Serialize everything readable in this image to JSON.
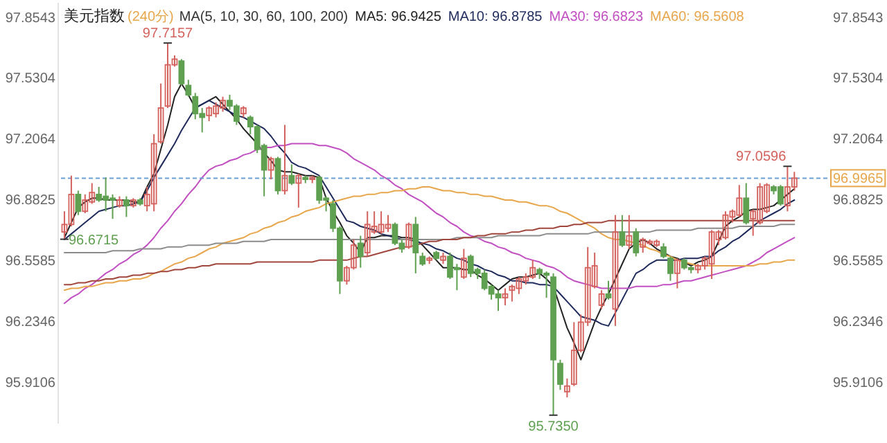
{
  "chart_data": {
    "type": "candlestick",
    "title": "美元指数",
    "subtitle": "(240分)",
    "legend_title": "MA(5, 10, 30, 60, 100, 200)",
    "legend": "top",
    "categories": [
      null,
      null,
      null,
      null,
      null,
      null,
      null,
      null,
      null,
      null,
      null,
      null,
      null,
      null,
      null,
      null,
      null,
      null,
      null,
      null,
      null,
      null,
      null,
      null,
      null,
      null,
      null,
      null,
      null,
      null,
      null,
      null,
      null,
      null,
      null,
      null,
      null,
      null,
      null,
      null,
      null,
      null,
      null,
      null,
      null,
      null,
      null,
      null,
      null,
      null,
      null,
      null,
      null,
      null,
      null,
      null,
      null,
      null,
      null,
      null,
      null,
      null,
      null,
      null,
      null,
      null,
      null,
      null,
      null,
      null,
      null,
      null,
      null,
      null,
      null,
      null,
      null,
      null,
      null,
      null,
      null,
      null,
      null,
      null,
      null,
      null,
      null,
      null,
      null,
      null,
      null,
      null,
      null,
      null,
      null,
      null,
      null,
      null,
      null,
      null,
      null,
      null,
      null,
      null,
      null,
      null,
      null
    ],
    "ohlc": [
      [
        96.71,
        96.82,
        96.6715,
        96.75
      ],
      [
        96.75,
        97.01,
        96.74,
        96.91
      ],
      [
        96.91,
        96.93,
        96.8,
        96.82
      ],
      [
        96.82,
        96.91,
        96.81,
        96.88
      ],
      [
        96.87,
        96.97,
        96.86,
        96.92
      ],
      [
        96.91,
        96.95,
        96.87,
        96.88
      ],
      [
        96.9,
        97.0,
        96.82,
        96.88
      ],
      [
        96.89,
        96.91,
        96.78,
        96.88
      ],
      [
        96.85,
        96.9,
        96.84,
        96.88
      ],
      [
        96.88,
        96.9,
        96.79,
        96.85
      ],
      [
        96.85,
        96.89,
        96.84,
        96.88
      ],
      [
        96.88,
        96.89,
        96.85,
        96.86
      ],
      [
        96.85,
        96.95,
        96.82,
        96.91
      ],
      [
        96.86,
        97.23,
        96.82,
        97.18
      ],
      [
        97.19,
        97.5,
        97.18,
        97.37
      ],
      [
        97.38,
        97.7157,
        97.37,
        97.6
      ],
      [
        97.6,
        97.65,
        97.59,
        97.63
      ],
      [
        97.62,
        97.63,
        97.49,
        97.5
      ],
      [
        97.49,
        97.52,
        97.43,
        97.44
      ],
      [
        97.43,
        97.45,
        97.31,
        97.34
      ],
      [
        97.34,
        97.37,
        97.24,
        97.32
      ],
      [
        97.33,
        97.38,
        97.3,
        97.37
      ],
      [
        97.34,
        97.4,
        97.32,
        97.38
      ],
      [
        97.37,
        97.43,
        97.35,
        97.41
      ],
      [
        97.41,
        97.44,
        97.36,
        97.38
      ],
      [
        97.38,
        97.39,
        97.28,
        97.3
      ],
      [
        97.34,
        97.38,
        97.32,
        97.37
      ],
      [
        97.32,
        97.33,
        97.23,
        97.27
      ],
      [
        97.27,
        97.28,
        97.13,
        97.15
      ],
      [
        97.17,
        97.18,
        96.9,
        97.04
      ],
      [
        97.04,
        97.11,
        96.99,
        97.1
      ],
      [
        97.1,
        97.11,
        96.91,
        96.93
      ],
      [
        96.93,
        97.28,
        96.91,
        97.01
      ],
      [
        97.01,
        97.07,
        96.96,
        96.97
      ],
      [
        96.97,
        97.02,
        96.84,
        97.01
      ],
      [
        97.0,
        97.01,
        96.97,
        96.99
      ],
      [
        96.99,
        97.01,
        96.97,
        97.0
      ],
      [
        97.0,
        97.01,
        96.86,
        96.88
      ],
      [
        96.89,
        96.9,
        96.82,
        96.88
      ],
      [
        96.86,
        96.88,
        96.71,
        96.73
      ],
      [
        96.73,
        96.74,
        96.38,
        96.45
      ],
      [
        96.45,
        96.53,
        96.43,
        96.52
      ],
      [
        96.52,
        96.67,
        96.51,
        96.64
      ],
      [
        96.65,
        96.69,
        96.52,
        96.58
      ],
      [
        96.6,
        96.82,
        96.58,
        96.75
      ],
      [
        96.71,
        96.82,
        96.7,
        96.74
      ],
      [
        96.71,
        96.82,
        96.7,
        96.75
      ],
      [
        96.73,
        96.8,
        96.71,
        96.75
      ],
      [
        96.75,
        96.76,
        96.64,
        96.65
      ],
      [
        96.65,
        96.67,
        96.6,
        96.62
      ],
      [
        96.63,
        96.76,
        96.62,
        96.75
      ],
      [
        96.75,
        96.79,
        96.49,
        96.6
      ],
      [
        96.58,
        96.6,
        96.53,
        96.54
      ],
      [
        96.56,
        96.58,
        96.54,
        96.57
      ],
      [
        96.6,
        96.61,
        96.56,
        96.57
      ],
      [
        96.56,
        96.6,
        96.54,
        96.58
      ],
      [
        96.58,
        96.6,
        96.46,
        96.47
      ],
      [
        96.52,
        96.54,
        96.4,
        96.51
      ],
      [
        96.47,
        96.62,
        96.46,
        96.57
      ],
      [
        96.58,
        96.59,
        96.47,
        96.49
      ],
      [
        96.51,
        96.52,
        96.46,
        96.49
      ],
      [
        96.49,
        96.51,
        96.4,
        96.41
      ],
      [
        96.42,
        96.43,
        96.35,
        96.38
      ],
      [
        96.38,
        96.4,
        96.29,
        96.36
      ],
      [
        96.36,
        96.41,
        96.32,
        96.38
      ],
      [
        96.4,
        96.43,
        96.34,
        96.42
      ],
      [
        96.41,
        96.47,
        96.38,
        96.46
      ],
      [
        96.45,
        96.49,
        96.43,
        96.47
      ],
      [
        96.47,
        96.56,
        96.46,
        96.52
      ],
      [
        96.51,
        96.52,
        96.46,
        96.49
      ],
      [
        96.49,
        96.5,
        96.36,
        96.48
      ],
      [
        96.47,
        96.49,
        95.735,
        96.03
      ],
      [
        96.01,
        96.03,
        95.87,
        95.9
      ],
      [
        95.86,
        95.93,
        95.83,
        95.89
      ],
      [
        95.9,
        96.23,
        95.89,
        96.08
      ],
      [
        96.08,
        96.27,
        96.07,
        96.23
      ],
      [
        96.23,
        96.63,
        96.21,
        96.52
      ],
      [
        96.42,
        96.6,
        96.41,
        96.53
      ],
      [
        96.32,
        96.4,
        96.3,
        96.38
      ],
      [
        96.38,
        96.45,
        96.35,
        96.36
      ],
      [
        96.3,
        96.8,
        96.21,
        96.71
      ],
      [
        96.71,
        96.8,
        96.63,
        96.64
      ],
      [
        96.64,
        96.8,
        96.62,
        96.69
      ],
      [
        96.71,
        96.73,
        96.58,
        96.6
      ],
      [
        96.63,
        96.68,
        96.6,
        96.67
      ],
      [
        96.65,
        96.67,
        96.64,
        96.66
      ],
      [
        96.64,
        96.67,
        96.63,
        96.66
      ],
      [
        96.63,
        96.65,
        96.57,
        96.58
      ],
      [
        96.57,
        96.58,
        96.45,
        96.49
      ],
      [
        96.49,
        96.57,
        96.41,
        96.56
      ],
      [
        96.56,
        96.57,
        96.51,
        96.52
      ],
      [
        96.52,
        96.53,
        96.49,
        96.51
      ],
      [
        96.51,
        96.54,
        96.49,
        96.53
      ],
      [
        96.53,
        96.58,
        96.51,
        96.57
      ],
      [
        96.54,
        96.72,
        96.46,
        96.71
      ],
      [
        96.67,
        96.72,
        96.64,
        96.71
      ],
      [
        96.68,
        96.82,
        96.67,
        96.8
      ],
      [
        96.79,
        96.83,
        96.76,
        96.82
      ],
      [
        96.8,
        96.96,
        96.79,
        96.89
      ],
      [
        96.89,
        96.97,
        96.75,
        96.76
      ],
      [
        96.78,
        96.83,
        96.69,
        96.82
      ],
      [
        96.76,
        96.97,
        96.75,
        96.95
      ],
      [
        96.82,
        96.97,
        96.81,
        96.96
      ],
      [
        96.95,
        96.96,
        96.91,
        96.93
      ],
      [
        96.95,
        96.96,
        96.85,
        96.86
      ],
      [
        96.85,
        97.0596,
        96.82,
        96.95
      ],
      [
        96.95,
        97.03,
        96.93,
        96.9965
      ]
    ],
    "series": [
      {
        "type": "line",
        "name": "MA5: 96.9425",
        "color": "#222222",
        "values": [
          96.68,
          96.76,
          96.84,
          96.87,
          96.89,
          96.89,
          96.88,
          96.88,
          96.88,
          96.88,
          96.87,
          96.87,
          96.95,
          97.02,
          97.15,
          97.28,
          97.43,
          97.5,
          97.44,
          97.37,
          97.39,
          97.41,
          97.43,
          97.39,
          97.35,
          97.31,
          97.26,
          97.22,
          97.18,
          97.13,
          97.09,
          97.04,
          97.03,
          97.03,
          97.02,
          97.01,
          97.01,
          97.0,
          96.89,
          96.82,
          96.76,
          96.69,
          96.65,
          96.6,
          96.68,
          96.68,
          96.69,
          96.69,
          96.69,
          96.68,
          96.68,
          96.67,
          96.64,
          96.6,
          96.56,
          96.52,
          96.52,
          96.52,
          96.51,
          96.51,
          96.48,
          96.46,
          96.43,
          96.4,
          96.43,
          96.46,
          96.47,
          96.47,
          96.48,
          96.49,
          96.46,
          96.42,
          96.31,
          96.2,
          96.12,
          96.03,
          96.13,
          96.23,
          96.31,
          96.38,
          96.46,
          96.54,
          96.62,
          96.65,
          96.67,
          96.65,
          96.62,
          96.6,
          96.58,
          96.57,
          96.55,
          96.53,
          96.55,
          96.56,
          96.58,
          96.66,
          96.74,
          96.77,
          96.79,
          96.82,
          96.83,
          96.83,
          96.84,
          96.85,
          96.88,
          96.91,
          96.94
        ]
      },
      {
        "type": "line",
        "name": "MA10: 96.8785",
        "color": "#1f2a5c",
        "values": [
          96.67,
          96.7,
          96.73,
          96.76,
          96.79,
          96.82,
          96.83,
          96.84,
          96.85,
          96.85,
          96.86,
          96.87,
          96.93,
          97.0,
          97.06,
          97.12,
          97.18,
          97.25,
          97.31,
          97.37,
          97.39,
          97.41,
          97.39,
          97.37,
          97.35,
          97.33,
          97.32,
          97.3,
          97.28,
          97.26,
          97.22,
          97.17,
          97.13,
          97.08,
          97.06,
          97.05,
          97.03,
          97.01,
          96.95,
          96.89,
          96.83,
          96.77,
          96.76,
          96.74,
          96.73,
          96.72,
          96.7,
          96.69,
          96.68,
          96.67,
          96.67,
          96.66,
          96.65,
          96.64,
          96.62,
          96.61,
          96.59,
          96.57,
          96.56,
          96.54,
          96.53,
          96.51,
          96.5,
          96.48,
          96.47,
          96.45,
          96.45,
          96.44,
          96.44,
          96.43,
          96.43,
          96.42,
          96.38,
          96.34,
          96.3,
          96.26,
          96.25,
          96.24,
          96.22,
          96.21,
          96.28,
          96.35,
          96.42,
          96.49,
          96.51,
          96.54,
          96.56,
          96.56,
          96.56,
          96.56,
          96.57,
          96.57,
          96.57,
          96.58,
          96.58,
          96.61,
          96.63,
          96.66,
          96.68,
          96.71,
          96.74,
          96.77,
          96.79,
          96.81,
          96.83,
          96.86,
          96.88
        ]
      },
      {
        "type": "line",
        "name": "MA30: 96.6823",
        "color": "#c24fc2",
        "values": [
          96.33,
          96.36,
          96.38,
          96.41,
          96.43,
          96.46,
          96.49,
          96.51,
          96.54,
          96.56,
          96.59,
          96.61,
          96.64,
          96.68,
          96.73,
          96.77,
          96.82,
          96.86,
          96.91,
          96.95,
          97.0,
          97.04,
          97.06,
          97.07,
          97.09,
          97.1,
          97.12,
          97.13,
          97.15,
          97.16,
          97.16,
          97.17,
          97.17,
          97.18,
          97.18,
          97.18,
          97.18,
          97.17,
          97.17,
          97.16,
          97.15,
          97.13,
          97.1,
          97.08,
          97.06,
          97.04,
          97.01,
          96.99,
          96.96,
          96.94,
          96.91,
          96.89,
          96.87,
          96.84,
          96.81,
          96.79,
          96.76,
          96.74,
          96.71,
          96.69,
          96.68,
          96.66,
          96.65,
          96.63,
          96.62,
          96.6,
          96.59,
          96.57,
          96.56,
          96.55,
          96.53,
          96.52,
          96.5,
          96.47,
          96.45,
          96.44,
          96.43,
          96.42,
          96.41,
          96.41,
          96.41,
          96.41,
          96.41,
          96.42,
          96.42,
          96.42,
          96.42,
          96.43,
          96.43,
          96.44,
          96.45,
          96.45,
          96.46,
          96.47,
          96.48,
          96.49,
          96.5,
          96.51,
          96.52,
          96.53,
          96.55,
          96.57,
          96.6,
          96.62,
          96.64,
          96.66,
          96.68
        ]
      },
      {
        "type": "line",
        "name": "MA60: 96.5608",
        "color": "#e8a64a",
        "values": [
          96.4,
          96.41,
          96.41,
          96.42,
          96.42,
          96.43,
          96.44,
          96.44,
          96.45,
          96.45,
          96.46,
          96.46,
          96.47,
          96.49,
          96.5,
          96.52,
          96.54,
          96.55,
          96.57,
          96.58,
          96.6,
          96.62,
          96.63,
          96.65,
          96.66,
          96.67,
          96.68,
          96.7,
          96.71,
          96.73,
          96.74,
          96.76,
          96.77,
          96.79,
          96.8,
          96.82,
          96.83,
          96.84,
          96.86,
          96.87,
          96.88,
          96.89,
          96.9,
          96.9,
          96.91,
          96.91,
          96.92,
          96.92,
          96.93,
          96.93,
          96.94,
          96.94,
          96.95,
          96.95,
          96.94,
          96.93,
          96.93,
          96.92,
          96.92,
          96.91,
          96.91,
          96.9,
          96.9,
          96.89,
          96.88,
          96.88,
          96.87,
          96.87,
          96.86,
          96.85,
          96.85,
          96.84,
          96.82,
          96.81,
          96.79,
          96.77,
          96.75,
          96.73,
          96.7,
          96.68,
          96.67,
          96.67,
          96.66,
          96.65,
          96.64,
          96.62,
          96.61,
          96.59,
          96.58,
          96.56,
          96.55,
          96.54,
          96.53,
          96.53,
          96.53,
          96.53,
          96.53,
          96.53,
          96.53,
          96.53,
          96.53,
          96.54,
          96.54,
          96.55,
          96.55,
          96.56,
          96.56
        ]
      },
      {
        "type": "line",
        "color": "#8c8c8c",
        "values": [
          96.6,
          96.6,
          96.6,
          96.6,
          96.6,
          96.6,
          96.6,
          96.61,
          96.61,
          96.61,
          96.61,
          96.62,
          96.62,
          96.62,
          96.62,
          96.63,
          96.63,
          96.63,
          96.64,
          96.64,
          96.64,
          96.64,
          96.65,
          96.65,
          96.65,
          96.65,
          96.66,
          96.66,
          96.66,
          96.66,
          96.67,
          96.67,
          96.67,
          96.67,
          96.67,
          96.67,
          96.67,
          96.67,
          96.67,
          96.67,
          96.67,
          96.67,
          96.67,
          96.67,
          96.67,
          96.67,
          96.67,
          96.67,
          96.67,
          96.67,
          96.67,
          96.67,
          96.67,
          96.67,
          96.67,
          96.67,
          96.67,
          96.68,
          96.68,
          96.68,
          96.68,
          96.68,
          96.68,
          96.69,
          96.69,
          96.69,
          96.69,
          96.69,
          96.69,
          96.69,
          96.7,
          96.7,
          96.7,
          96.7,
          96.7,
          96.7,
          96.7,
          96.71,
          96.71,
          96.71,
          96.71,
          96.71,
          96.71,
          96.71,
          96.71,
          96.71,
          96.72,
          96.72,
          96.72,
          96.72,
          96.72,
          96.72,
          96.73,
          96.73,
          96.73,
          96.73,
          96.73,
          96.73,
          96.74,
          96.74,
          96.74,
          96.74,
          96.74,
          96.74,
          96.75,
          96.75,
          96.75
        ]
      },
      {
        "type": "line",
        "color": "#a0463c",
        "values": [
          96.43,
          96.43,
          96.44,
          96.44,
          96.45,
          96.45,
          96.46,
          96.46,
          96.47,
          96.47,
          96.48,
          96.48,
          96.49,
          96.49,
          96.5,
          96.5,
          96.51,
          96.51,
          96.52,
          96.52,
          96.53,
          96.53,
          96.54,
          96.54,
          96.54,
          96.54,
          96.54,
          96.54,
          96.55,
          96.55,
          96.55,
          96.55,
          96.55,
          96.55,
          96.55,
          96.55,
          96.55,
          96.56,
          96.56,
          96.56,
          96.56,
          96.56,
          96.57,
          96.58,
          96.58,
          96.59,
          96.6,
          96.61,
          96.62,
          96.63,
          96.63,
          96.64,
          96.65,
          96.66,
          96.66,
          96.67,
          96.67,
          96.67,
          96.68,
          96.68,
          96.69,
          96.69,
          96.7,
          96.7,
          96.7,
          96.71,
          96.71,
          96.72,
          96.72,
          96.73,
          96.73,
          96.73,
          96.74,
          96.74,
          96.75,
          96.75,
          96.76,
          96.76,
          96.76,
          96.77,
          96.77,
          96.77,
          96.77,
          96.77,
          96.77,
          96.77,
          96.77,
          96.77,
          96.77,
          96.77,
          96.77,
          96.77,
          96.77,
          96.77,
          96.77,
          96.77,
          96.77,
          96.77,
          96.77,
          96.77,
          96.77,
          96.77,
          96.77,
          96.77,
          96.77,
          96.77,
          96.77
        ]
      }
    ],
    "ylim": [
      95.69,
      97.93
    ],
    "yticks": [
      95.9106,
      96.2346,
      96.5585,
      96.8825,
      97.2064,
      97.5304,
      97.8543
    ],
    "y2lim": [
      95.69,
      97.93
    ],
    "y2ticks": [
      95.9106,
      96.2346,
      96.5585,
      96.8825,
      97.2064,
      97.5304,
      97.8543
    ],
    "ref_lines": [
      {
        "axis": "y2",
        "value": 96.9965,
        "label": "96.9965",
        "color": "#6a9fd4",
        "line_style": "dashed"
      }
    ],
    "annotations": [
      {
        "text": "97.7157",
        "y": 97.7157
      },
      "97.0596",
      {
        "text": "95.7350",
        "y": 95.735
      },
      "96.6715"
    ]
  }
}
